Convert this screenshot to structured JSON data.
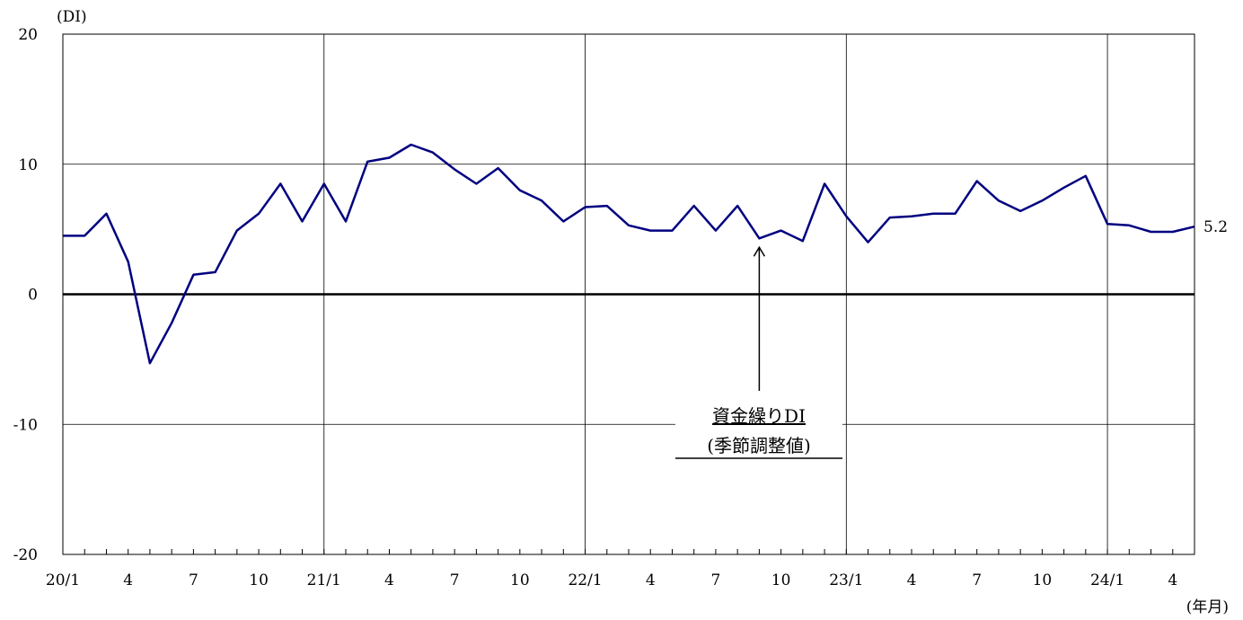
{
  "chart_data": {
    "type": "line",
    "ylabel": "(DI)",
    "xlabel": "(年月)",
    "ylim": [
      -20,
      20
    ],
    "yticks": [
      "20",
      "10",
      "0",
      "-10",
      "-20"
    ],
    "x_tick_labels": [
      "20/1",
      "4",
      "7",
      "10",
      "21/1",
      "4",
      "7",
      "10",
      "22/1",
      "4",
      "7",
      "10",
      "23/1",
      "4",
      "7",
      "10",
      "24/1",
      "4"
    ],
    "months": [
      "20/1",
      "20/2",
      "20/3",
      "20/4",
      "20/5",
      "20/6",
      "20/7",
      "20/8",
      "20/9",
      "20/10",
      "20/11",
      "20/12",
      "21/1",
      "21/2",
      "21/3",
      "21/4",
      "21/5",
      "21/6",
      "21/7",
      "21/8",
      "21/9",
      "21/10",
      "21/11",
      "21/12",
      "22/1",
      "22/2",
      "22/3",
      "22/4",
      "22/5",
      "22/6",
      "22/7",
      "22/8",
      "22/9",
      "22/10",
      "22/11",
      "22/12",
      "23/1",
      "23/2",
      "23/3",
      "23/4",
      "23/5",
      "23/6",
      "23/7",
      "23/8",
      "23/9",
      "23/10",
      "23/11",
      "23/12",
      "24/1",
      "24/2",
      "24/3",
      "24/4",
      "24/5"
    ],
    "series": [
      {
        "name": "資金繰りDI(季節調整値)",
        "color": "#000080",
        "values": [
          4.5,
          4.5,
          6.2,
          2.5,
          -5.3,
          -2.2,
          1.5,
          1.7,
          4.9,
          6.2,
          8.5,
          5.6,
          8.5,
          5.6,
          10.2,
          10.5,
          11.5,
          10.9,
          9.6,
          8.5,
          9.7,
          8.0,
          7.2,
          5.6,
          6.7,
          6.8,
          5.3,
          4.9,
          4.9,
          6.8,
          4.9,
          6.8,
          4.3,
          4.9,
          4.1,
          8.5,
          6.0,
          4.0,
          5.9,
          6.0,
          6.2,
          6.2,
          8.7,
          7.2,
          6.4,
          7.2,
          8.2,
          9.1,
          5.4,
          5.3,
          4.8,
          4.8,
          5.2
        ]
      }
    ],
    "last_value_label": "5.2",
    "annotation": {
      "line1": "資金繰りDI",
      "line2": "(季節調整値)",
      "arrow_target_month_index": 32
    },
    "grid": true,
    "legend": "none"
  }
}
